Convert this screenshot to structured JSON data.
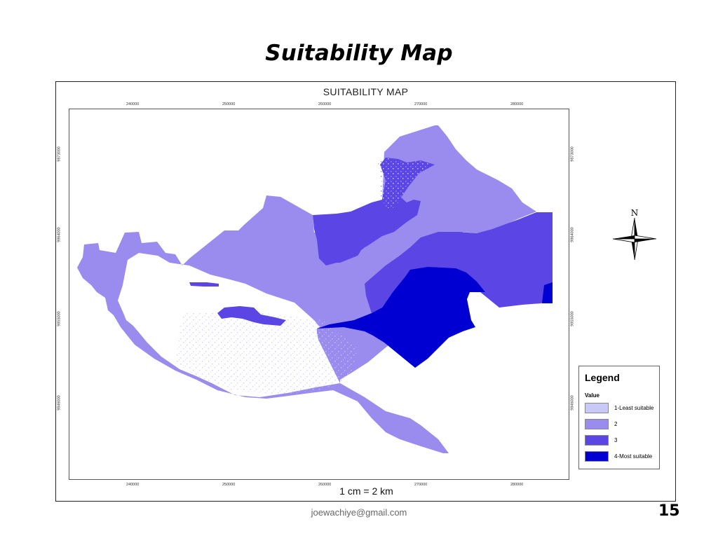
{
  "slide": {
    "title": "Suitability Map",
    "footer_email": "joewachiye@gmail.com",
    "page_number": "15"
  },
  "map": {
    "heading": "SUITABILITY MAP",
    "scale_text": "1 cm = 2 km",
    "north_label": "N",
    "x_ticks": [
      "240000",
      "250000",
      "260000",
      "270000",
      "280000"
    ],
    "y_ticks": [
      "9873000",
      "9864000",
      "9855000",
      "9846000"
    ],
    "legend": {
      "title": "Legend",
      "subtitle": "Value",
      "items": [
        {
          "label": "1-Least suitable",
          "color": "#c9c9f7"
        },
        {
          "label": "2",
          "color": "#9a8bee"
        },
        {
          "label": "3",
          "color": "#5b45e4"
        },
        {
          "label": "4-Most suitable",
          "color": "#0000d2"
        }
      ]
    }
  }
}
